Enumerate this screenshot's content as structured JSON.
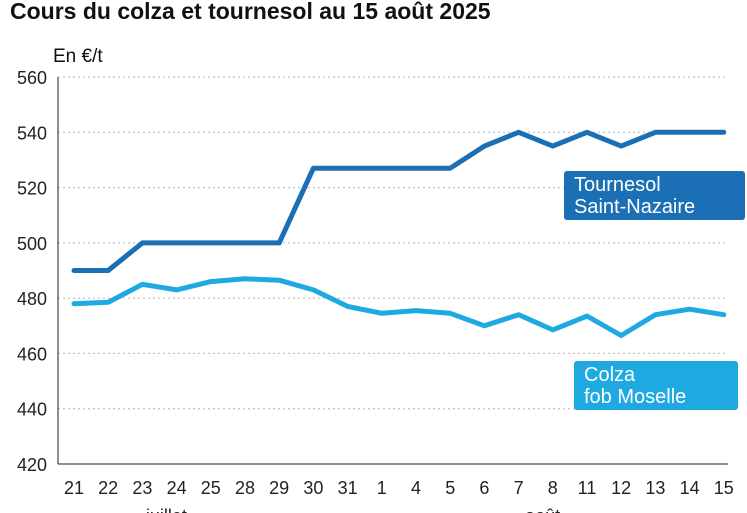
{
  "chart_data": {
    "type": "line",
    "title": "Cours du colza et tournesol au 15 août 2025",
    "ylabel": "En €/t",
    "ylim": [
      420,
      560
    ],
    "yticks": [
      420,
      440,
      460,
      480,
      500,
      520,
      540,
      560
    ],
    "grid": true,
    "categories": [
      "21",
      "22",
      "23",
      "24",
      "25",
      "28",
      "29",
      "30",
      "31",
      "1",
      "4",
      "5",
      "6",
      "7",
      "8",
      "11",
      "12",
      "13",
      "14",
      "15"
    ],
    "month_labels": [
      {
        "label": "juillet",
        "category_index": 2
      },
      {
        "label": "août",
        "category_index": 13
      }
    ],
    "series": [
      {
        "name_lines": [
          "Tournesol",
          "Saint-Nazaire"
        ],
        "color": "#1a6fb5",
        "values": [
          490,
          490,
          500,
          500,
          500,
          500,
          500,
          527,
          527,
          527,
          527,
          527,
          535,
          540,
          535,
          540,
          535,
          540,
          540,
          540
        ]
      },
      {
        "name_lines": [
          "Colza",
          "fob Moselle"
        ],
        "color": "#1fa9e1",
        "values": [
          478,
          478.5,
          485,
          483,
          486,
          487,
          486.5,
          483,
          477,
          474.5,
          475.5,
          474.5,
          470,
          474,
          468.5,
          473.5,
          466.5,
          474,
          476,
          474
        ]
      }
    ]
  }
}
